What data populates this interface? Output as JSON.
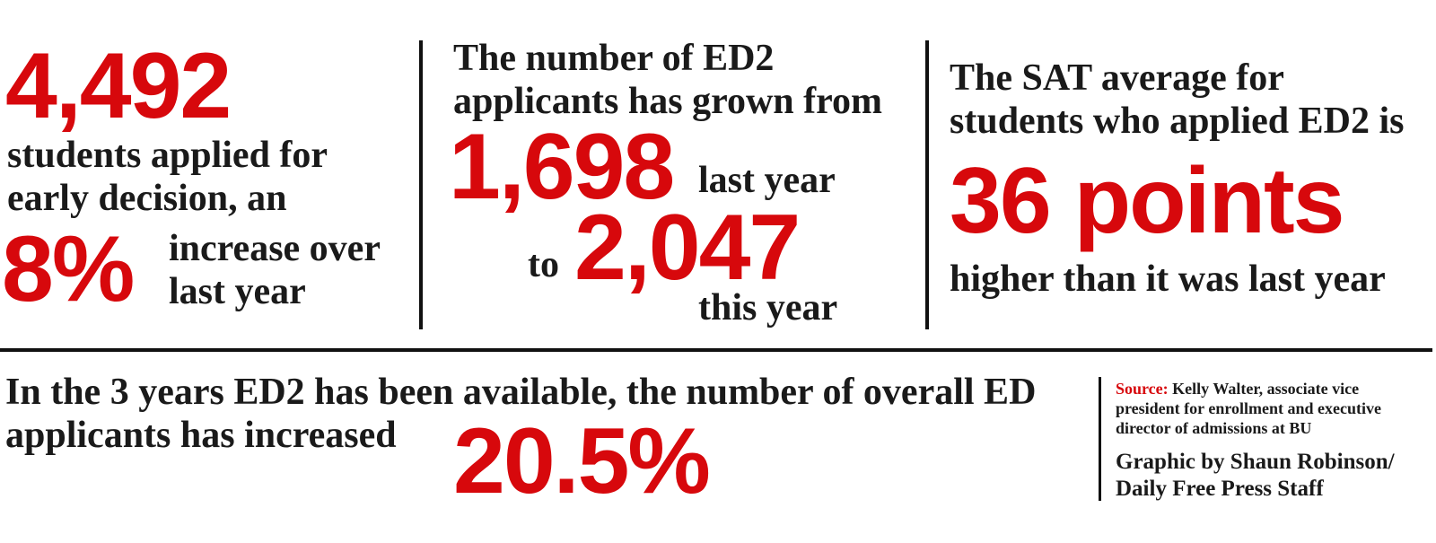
{
  "stat_1": {
    "number": "4,492",
    "text": [
      "students applied for",
      "early decision, an"
    ],
    "percent": "8%",
    "percent_text": [
      "increase over",
      "last year"
    ]
  },
  "stat_2": {
    "intro": [
      "The number of ED2",
      "applicants has grown from"
    ],
    "from": "1,698",
    "from_label": "last year",
    "to_word": "to",
    "to": "2,047",
    "to_label": "this year"
  },
  "stat_3": {
    "intro": [
      "The SAT average for",
      "students who applied ED2 is"
    ],
    "number": "36 points",
    "outro": "higher than it was last year"
  },
  "stat_4": {
    "text": [
      "In the 3 years ED2 has been available, the number of overall ED",
      "applicants has increased"
    ],
    "percent": "20.5%"
  },
  "credits": {
    "source_label": "Source:",
    "source_lines": [
      "Kelly Walter, associate vice",
      "president for enrollment and executive",
      "director of admissions at BU"
    ],
    "graphic_lines": [
      "Graphic by Shaun Robinson/",
      "Daily Free Press Staff"
    ]
  }
}
